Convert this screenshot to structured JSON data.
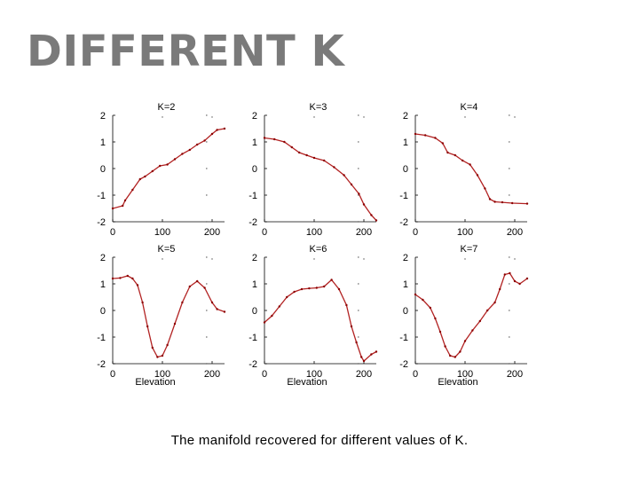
{
  "slide": {
    "title": "DIFFERENT K",
    "caption": "The manifold recovered for different values of K."
  },
  "style": {
    "curve_color": "#b22222",
    "axis_color": "#000000",
    "title_color": "#7a7a7a"
  },
  "chart_data": [
    {
      "type": "line",
      "title": "K=2",
      "xlabel": "",
      "xlim": [
        0,
        225
      ],
      "ylim": [
        -2,
        2
      ],
      "xticks": [
        "0",
        "100",
        "200"
      ],
      "yticks": [
        "2",
        "1",
        "0",
        "-1",
        "-2"
      ],
      "x": [
        0,
        20,
        25,
        40,
        55,
        65,
        80,
        95,
        110,
        125,
        140,
        155,
        170,
        185,
        200,
        210,
        225
      ],
      "y": [
        -1.5,
        -1.4,
        -1.2,
        -0.8,
        -0.4,
        -0.3,
        -0.1,
        0.1,
        0.15,
        0.35,
        0.55,
        0.7,
        0.9,
        1.05,
        1.3,
        1.45,
        1.5
      ]
    },
    {
      "type": "line",
      "title": "K=3",
      "xlabel": "",
      "xlim": [
        0,
        225
      ],
      "ylim": [
        -2,
        2
      ],
      "xticks": [
        "0",
        "100",
        "200"
      ],
      "yticks": [
        "2",
        "1",
        "0",
        "-1",
        "-2"
      ],
      "x": [
        0,
        20,
        40,
        55,
        70,
        85,
        100,
        120,
        140,
        160,
        175,
        190,
        200,
        215,
        225
      ],
      "y": [
        1.15,
        1.1,
        1.0,
        0.8,
        0.6,
        0.5,
        0.4,
        0.3,
        0.05,
        -0.25,
        -0.6,
        -0.95,
        -1.35,
        -1.75,
        -1.95
      ]
    },
    {
      "type": "line",
      "title": "K=4",
      "xlabel": "",
      "xlim": [
        0,
        225
      ],
      "ylim": [
        -2,
        2
      ],
      "xticks": [
        "0",
        "100",
        "200"
      ],
      "yticks": [
        "2",
        "1",
        "0",
        "-1",
        "-2"
      ],
      "x": [
        0,
        20,
        40,
        55,
        65,
        80,
        95,
        110,
        125,
        140,
        150,
        160,
        175,
        195,
        225
      ],
      "y": [
        1.3,
        1.25,
        1.15,
        0.95,
        0.6,
        0.5,
        0.3,
        0.15,
        -0.25,
        -0.75,
        -1.15,
        -1.25,
        -1.27,
        -1.3,
        -1.32
      ]
    },
    {
      "type": "line",
      "title": "K=5",
      "xlabel": "Elevation",
      "xlim": [
        0,
        225
      ],
      "ylim": [
        -2,
        2
      ],
      "xticks": [
        "0",
        "100",
        "200"
      ],
      "yticks": [
        "2",
        "1",
        "0",
        "-1",
        "-2"
      ],
      "x": [
        0,
        15,
        30,
        40,
        50,
        60,
        70,
        80,
        90,
        100,
        110,
        125,
        140,
        155,
        170,
        185,
        200,
        210,
        225
      ],
      "y": [
        1.2,
        1.22,
        1.3,
        1.2,
        0.95,
        0.3,
        -0.6,
        -1.4,
        -1.75,
        -1.7,
        -1.3,
        -0.5,
        0.3,
        0.9,
        1.1,
        0.85,
        0.3,
        0.05,
        -0.05
      ]
    },
    {
      "type": "line",
      "title": "K=6",
      "xlabel": "Elevation",
      "xlim": [
        0,
        225
      ],
      "ylim": [
        -2,
        2
      ],
      "xticks": [
        "0",
        "100",
        "200"
      ],
      "yticks": [
        "2",
        "1",
        "0",
        "-1",
        "-2"
      ],
      "x": [
        0,
        15,
        30,
        45,
        60,
        75,
        90,
        105,
        120,
        135,
        150,
        165,
        175,
        185,
        195,
        200,
        215,
        225
      ],
      "y": [
        -0.45,
        -0.2,
        0.15,
        0.5,
        0.7,
        0.8,
        0.83,
        0.85,
        0.9,
        1.15,
        0.8,
        0.2,
        -0.6,
        -1.2,
        -1.75,
        -1.9,
        -1.65,
        -1.55
      ]
    },
    {
      "type": "line",
      "title": "K=7",
      "xlabel": "Elevation",
      "xlim": [
        0,
        225
      ],
      "ylim": [
        -2,
        2
      ],
      "xticks": [
        "0",
        "100",
        "200"
      ],
      "yticks": [
        "2",
        "1",
        "0",
        "-1",
        "-2"
      ],
      "x": [
        0,
        15,
        30,
        40,
        50,
        60,
        70,
        80,
        90,
        100,
        115,
        130,
        145,
        160,
        170,
        180,
        190,
        200,
        210,
        225
      ],
      "y": [
        0.6,
        0.4,
        0.1,
        -0.3,
        -0.8,
        -1.35,
        -1.7,
        -1.75,
        -1.55,
        -1.15,
        -0.75,
        -0.4,
        0.0,
        0.3,
        0.8,
        1.35,
        1.4,
        1.1,
        1.0,
        1.2
      ]
    }
  ]
}
